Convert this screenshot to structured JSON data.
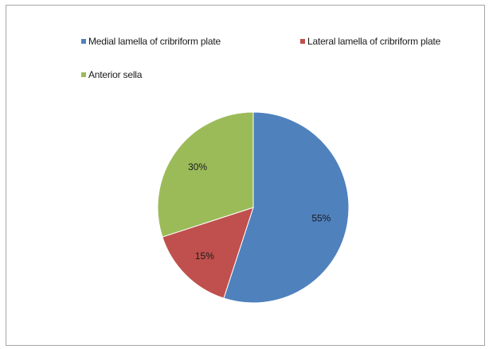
{
  "chart_data": {
    "type": "pie",
    "title": "",
    "legend_position": "top",
    "slices": [
      {
        "name": "Medial lamella of cribriform plate",
        "value": 55,
        "label": "55%",
        "color": "#4f81bd"
      },
      {
        "name": "Lateral lamella of cribriform plate",
        "value": 15,
        "label": "15%",
        "color": "#c0504d"
      },
      {
        "name": "Anterior sella",
        "value": 30,
        "label": "30%",
        "color": "#9bbb59"
      }
    ]
  }
}
